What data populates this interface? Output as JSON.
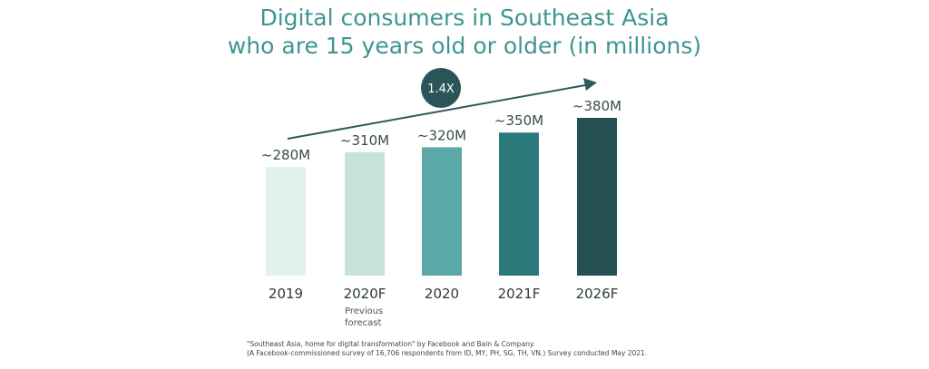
{
  "chart_data": {
    "type": "bar",
    "title_lines": [
      "Digital consumers in Southeast Asia",
      "who are 15 years old or older (in millions)"
    ],
    "categories": [
      "2019",
      "2020F",
      "2020",
      "2021F",
      "2026F"
    ],
    "category_notes": [
      "",
      "Previous forecast",
      "",
      "",
      ""
    ],
    "values": [
      280,
      310,
      320,
      350,
      380
    ],
    "data_labels": [
      "~280M",
      "~310M",
      "~320M",
      "~350M",
      "~380M"
    ],
    "colors": [
      "#e3f1ed",
      "#c6e3da",
      "#5ba8a8",
      "#2b7a7b",
      "#255054"
    ],
    "growth_annotation": "1.4X",
    "annotation_color": "#2a5458",
    "grid": false,
    "source_lines": [
      "\"Southeast Asia, home for digital transformation\" by Facebook and Bain & Company.",
      "(A Facebook-commissioned survey of 16,706 respondents from ID, MY, PH, SG, TH, VN.) Survey conducted May 2021."
    ]
  }
}
